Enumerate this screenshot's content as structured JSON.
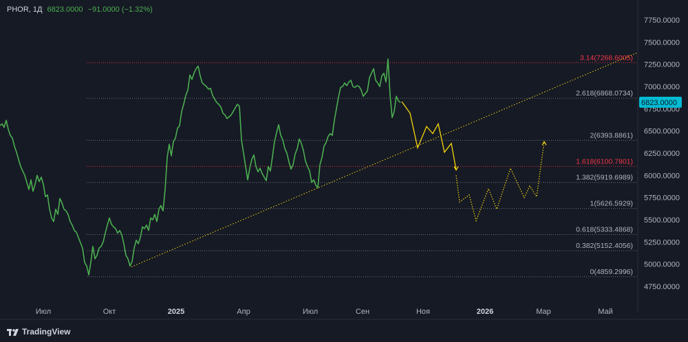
{
  "header": {
    "symbol": "PHOR, 1Д",
    "price": "6823.0000",
    "change": "−91.0000 (−1.32%)"
  },
  "brand": {
    "name": "TradingView"
  },
  "colors": {
    "background": "#161a25",
    "price_line": "#4caf50",
    "projection": "#f5d60a",
    "fib_level": "#787b86",
    "fib_level_red": "#f23645",
    "last_price_badge": "#00bcd4"
  },
  "chart_data": {
    "type": "line",
    "ylim": [
      4600,
      7900
    ],
    "y_ticks": [
      "4750.0000",
      "5000.0000",
      "5250.0000",
      "5500.0000",
      "5750.0000",
      "6000.0000",
      "6250.0000",
      "6500.0000",
      "6750.0000",
      "7000.0000",
      "7250.0000",
      "7500.0000",
      "7750.0000"
    ],
    "x_ticks": [
      {
        "label": "Июл",
        "year": false
      },
      {
        "label": "Окт",
        "year": false
      },
      {
        "label": "2025",
        "year": true
      },
      {
        "label": "Апр",
        "year": false
      },
      {
        "label": "Июл",
        "year": false
      },
      {
        "label": "Сен",
        "year": false
      },
      {
        "label": "Ноя",
        "year": false
      },
      {
        "label": "2026",
        "year": true
      },
      {
        "label": "Мар",
        "year": false
      },
      {
        "label": "Май",
        "year": false
      }
    ],
    "last_price": "6823.0000",
    "series": [
      {
        "values": [
          [
            0,
            6560
          ],
          [
            3,
            6580
          ],
          [
            6,
            6540
          ],
          [
            9,
            6620
          ],
          [
            12,
            6520
          ],
          [
            15,
            6450
          ],
          [
            18,
            6420
          ],
          [
            21,
            6330
          ],
          [
            24,
            6260
          ],
          [
            27,
            6180
          ],
          [
            30,
            6100
          ],
          [
            33,
            6050
          ],
          [
            36,
            6000
          ],
          [
            39,
            5920
          ],
          [
            42,
            5840
          ],
          [
            45,
            5950
          ],
          [
            48,
            5820
          ],
          [
            51,
            5900
          ],
          [
            54,
            6000
          ],
          [
            57,
            5930
          ],
          [
            60,
            5980
          ],
          [
            63,
            5900
          ],
          [
            66,
            5760
          ],
          [
            69,
            5780
          ],
          [
            72,
            5620
          ],
          [
            75,
            5520
          ],
          [
            78,
            5480
          ],
          [
            81,
            5620
          ],
          [
            84,
            5560
          ],
          [
            87,
            5740
          ],
          [
            90,
            5690
          ],
          [
            93,
            5620
          ],
          [
            96,
            5600
          ],
          [
            99,
            5560
          ],
          [
            102,
            5480
          ],
          [
            105,
            5440
          ],
          [
            108,
            5380
          ],
          [
            111,
            5360
          ],
          [
            114,
            5300
          ],
          [
            117,
            5240
          ],
          [
            120,
            5180
          ],
          [
            123,
            5020
          ],
          [
            126,
            4980
          ],
          [
            129,
            4880
          ],
          [
            132,
            5020
          ],
          [
            135,
            5200
          ],
          [
            138,
            5060
          ],
          [
            141,
            5100
          ],
          [
            144,
            5180
          ],
          [
            147,
            5200
          ],
          [
            150,
            5250
          ],
          [
            153,
            5350
          ],
          [
            156,
            5440
          ],
          [
            159,
            5520
          ],
          [
            162,
            5450
          ],
          [
            165,
            5420
          ],
          [
            168,
            5400
          ],
          [
            171,
            5350
          ],
          [
            174,
            5380
          ],
          [
            177,
            5330
          ],
          [
            180,
            5230
          ],
          [
            183,
            5100
          ],
          [
            186,
            5060
          ],
          [
            189,
            4980
          ],
          [
            192,
            5030
          ],
          [
            195,
            5180
          ],
          [
            198,
            5270
          ],
          [
            201,
            5230
          ],
          [
            204,
            5300
          ],
          [
            207,
            5420
          ],
          [
            210,
            5400
          ],
          [
            213,
            5440
          ],
          [
            216,
            5380
          ],
          [
            219,
            5520
          ],
          [
            222,
            5500
          ],
          [
            225,
            5560
          ],
          [
            228,
            5480
          ],
          [
            231,
            5620
          ],
          [
            234,
            5660
          ],
          [
            237,
            5600
          ],
          [
            240,
            5840
          ],
          [
            243,
            6200
          ],
          [
            246,
            6350
          ],
          [
            249,
            6220
          ],
          [
            252,
            6380
          ],
          [
            255,
            6420
          ],
          [
            258,
            6530
          ],
          [
            261,
            6560
          ],
          [
            264,
            6720
          ],
          [
            267,
            6800
          ],
          [
            270,
            6900
          ],
          [
            273,
            6960
          ],
          [
            276,
            7130
          ],
          [
            279,
            7080
          ],
          [
            282,
            7150
          ],
          [
            285,
            7200
          ],
          [
            288,
            7230
          ],
          [
            291,
            7120
          ],
          [
            294,
            7040
          ],
          [
            297,
            7020
          ],
          [
            300,
            7000
          ],
          [
            303,
            6970
          ],
          [
            306,
            6980
          ],
          [
            309,
            6900
          ],
          [
            312,
            6860
          ],
          [
            315,
            6820
          ],
          [
            318,
            6800
          ],
          [
            321,
            6770
          ],
          [
            324,
            6700
          ],
          [
            327,
            6680
          ],
          [
            330,
            6640
          ],
          [
            333,
            6660
          ],
          [
            336,
            6680
          ],
          [
            339,
            6720
          ],
          [
            342,
            6760
          ],
          [
            345,
            6800
          ],
          [
            348,
            6780
          ],
          [
            351,
            6400
          ],
          [
            354,
            6250
          ],
          [
            357,
            6100
          ],
          [
            360,
            5950
          ],
          [
            363,
            6080
          ],
          [
            366,
            6180
          ],
          [
            369,
            6230
          ],
          [
            372,
            6100
          ],
          [
            375,
            6040
          ],
          [
            378,
            6080
          ],
          [
            381,
            6020
          ],
          [
            384,
            5980
          ],
          [
            387,
            5940
          ],
          [
            390,
            6100
          ],
          [
            393,
            6050
          ],
          [
            396,
            6210
          ],
          [
            399,
            6380
          ],
          [
            402,
            6480
          ],
          [
            405,
            6570
          ],
          [
            408,
            6450
          ],
          [
            411,
            6400
          ],
          [
            414,
            6300
          ],
          [
            417,
            6250
          ],
          [
            420,
            6150
          ],
          [
            423,
            6070
          ],
          [
            426,
            6120
          ],
          [
            429,
            6240
          ],
          [
            432,
            6300
          ],
          [
            435,
            6410
          ],
          [
            438,
            6360
          ],
          [
            441,
            6280
          ],
          [
            444,
            6160
          ],
          [
            447,
            6100
          ],
          [
            450,
            6050
          ],
          [
            453,
            5920
          ],
          [
            456,
            5950
          ],
          [
            459,
            5890
          ],
          [
            462,
            5860
          ],
          [
            465,
            6120
          ],
          [
            468,
            6200
          ],
          [
            471,
            6330
          ],
          [
            474,
            6370
          ],
          [
            477,
            6440
          ],
          [
            480,
            6470
          ],
          [
            483,
            6450
          ],
          [
            486,
            6620
          ],
          [
            489,
            6750
          ],
          [
            492,
            6880
          ],
          [
            495,
            6990
          ],
          [
            498,
            7000
          ],
          [
            501,
            7040
          ],
          [
            504,
            7010
          ],
          [
            507,
            7050
          ],
          [
            510,
            7070
          ],
          [
            513,
            7000
          ],
          [
            516,
            6990
          ],
          [
            519,
            7010
          ],
          [
            522,
            7000
          ],
          [
            525,
            6960
          ],
          [
            528,
            6890
          ],
          [
            531,
            6920
          ],
          [
            534,
            6950
          ],
          [
            537,
            7100
          ],
          [
            540,
            7150
          ],
          [
            543,
            7200
          ],
          [
            546,
            7070
          ],
          [
            549,
            7040
          ],
          [
            552,
            7000
          ],
          [
            555,
            7120
          ],
          [
            558,
            7150
          ],
          [
            561,
            7050
          ],
          [
            564,
            7310
          ],
          [
            567,
            6900
          ],
          [
            570,
            6650
          ],
          [
            573,
            6720
          ],
          [
            576,
            6890
          ],
          [
            579,
            6840
          ],
          [
            582,
            6820
          ]
        ]
      }
    ],
    "projection_solid": [
      [
        584,
        6830
      ],
      [
        596,
        6700
      ],
      [
        607,
        6310
      ],
      [
        620,
        6550
      ],
      [
        629,
        6470
      ],
      [
        637,
        6580
      ],
      [
        646,
        6260
      ],
      [
        656,
        6360
      ],
      [
        663,
        6060
      ]
    ],
    "projection_dashed": [
      [
        663,
        6000
      ],
      [
        668,
        5700
      ],
      [
        682,
        5780
      ],
      [
        692,
        5490
      ],
      [
        710,
        5850
      ],
      [
        722,
        5620
      ],
      [
        742,
        6080
      ],
      [
        762,
        5750
      ],
      [
        770,
        5880
      ],
      [
        780,
        5760
      ],
      [
        791,
        6380
      ]
    ],
    "trendline": [
      [
        191,
        4970
      ],
      [
        926,
        7380
      ]
    ],
    "fib_levels": [
      {
        "label": "3.14(7268.6005)",
        "value": 7268.6005,
        "red": true
      },
      {
        "label": "2.618(6868.0734)",
        "value": 6868.0734,
        "red": false
      },
      {
        "label": "2(6393.8861)",
        "value": 6393.8861,
        "red": false
      },
      {
        "label": "1.618(6100.7801)",
        "value": 6100.7801,
        "red": true
      },
      {
        "label": "1.382(5919.6989)",
        "value": 5919.6989,
        "red": false
      },
      {
        "label": "1(5626.5929)",
        "value": 5626.5929,
        "red": false
      },
      {
        "label": "0.618(5333.4868)",
        "value": 5333.4868,
        "red": false
      },
      {
        "label": "0.382(5152.4056)",
        "value": 5152.4056,
        "red": false
      },
      {
        "label": "0(4859.2996)",
        "value": 4859.2996,
        "red": false
      }
    ]
  }
}
